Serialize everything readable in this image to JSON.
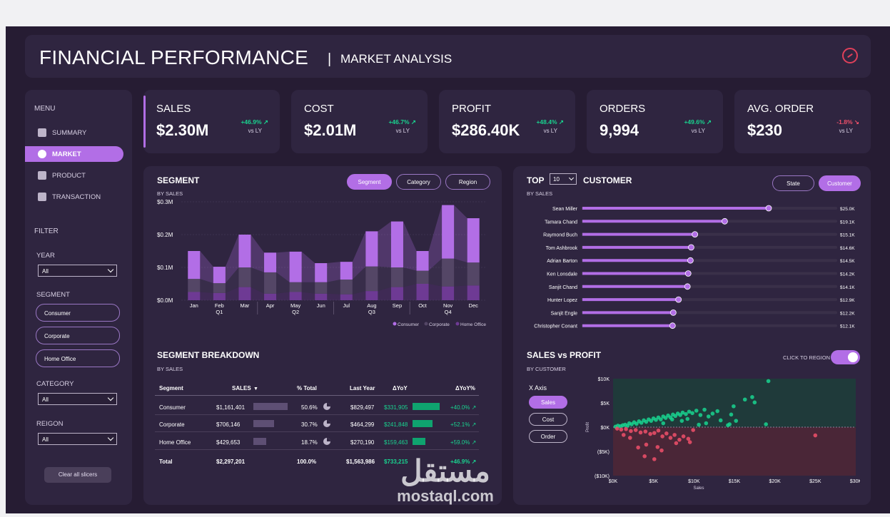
{
  "header": {
    "title": "FINANCIAL PERFORMANCE",
    "separator": "|",
    "subtitle": "MARKET ANALYSIS"
  },
  "sidebar": {
    "menu_heading": "MENU",
    "menu": [
      {
        "label": "SUMMARY",
        "active": false
      },
      {
        "label": "MARKET",
        "active": true
      },
      {
        "label": "PRODUCT",
        "active": false
      },
      {
        "label": "TRANSACTION",
        "active": false
      }
    ],
    "filter_heading": "FILTER",
    "year": {
      "label": "YEAR",
      "value": "All"
    },
    "segment": {
      "label": "SEGMENT",
      "options": [
        "Consumer",
        "Corporate",
        "Home Office"
      ]
    },
    "category": {
      "label": "CATEGORY",
      "value": "All"
    },
    "region": {
      "label": "REIGON",
      "value": "All"
    },
    "clear_label": "Clear all slicers"
  },
  "kpis": [
    {
      "label": "SALES",
      "value": "$2.30M",
      "delta": "+46.9%",
      "dir": "up",
      "vs": "vs LY"
    },
    {
      "label": "COST",
      "value": "$2.01M",
      "delta": "+46.7%",
      "dir": "up",
      "vs": "vs LY"
    },
    {
      "label": "PROFIT",
      "value": "$286.40K",
      "delta": "+48.4%",
      "dir": "up",
      "vs": "vs LY"
    },
    {
      "label": "ORDERS",
      "value": "9,994",
      "delta": "+49.6%",
      "dir": "up",
      "vs": "vs LY"
    },
    {
      "label": "AVG. ORDER",
      "value": "$230",
      "delta": "-1.8%",
      "dir": "down",
      "vs": "vs LY"
    }
  ],
  "segment_panel": {
    "title": "SEGMENT",
    "subtitle": "BY SALES",
    "tabs": [
      {
        "label": "Segment",
        "active": true
      },
      {
        "label": "Category",
        "active": false
      },
      {
        "label": "Region",
        "active": false
      }
    ]
  },
  "breakdown": {
    "title": "SEGMENT BREAKDOWN",
    "subtitle": "BY SALES",
    "headers": [
      "Segment",
      "SALES",
      "% Total",
      "Last Year",
      "ΔYoY",
      "ΔYoY%"
    ],
    "rows": [
      {
        "segment": "Consumer",
        "sales": "$1,161,401",
        "pct": "50.6%",
        "last_year": "$829,497",
        "yoy": "$331,905",
        "yoy_pct": "+40.0%",
        "sales_share": 0.506,
        "yoy_value": 331905
      },
      {
        "segment": "Corporate",
        "sales": "$706,146",
        "pct": "30.7%",
        "last_year": "$464,299",
        "yoy": "$241,848",
        "yoy_pct": "+52.1%",
        "sales_share": 0.307,
        "yoy_value": 241848
      },
      {
        "segment": "Home Office",
        "sales": "$429,653",
        "pct": "18.7%",
        "last_year": "$270,190",
        "yoy": "$159,463",
        "yoy_pct": "+59.0%",
        "sales_share": 0.187,
        "yoy_value": 159463
      }
    ],
    "total": {
      "segment": "Total",
      "sales": "$2,297,201",
      "pct": "100.0%",
      "last_year": "$1,563,986",
      "yoy": "$733,215",
      "yoy_pct": "+46.9%"
    }
  },
  "top_panel": {
    "top_label": "TOP",
    "top_value": "10",
    "customer_label": "CUSTOMER",
    "subtitle": "BY SALES",
    "tabs": [
      {
        "label": "State",
        "active": false
      },
      {
        "label": "Customer",
        "active": true
      }
    ]
  },
  "scatter_panel": {
    "title": "SALES vs PROFIT",
    "subtitle": "BY CUSTOMER",
    "toggle_label": "CLICK TO REGION",
    "xaxis_label": "X Axis",
    "xaxis_options": [
      {
        "label": "Sales",
        "active": true
      },
      {
        "label": "Cost",
        "active": false
      },
      {
        "label": "Order",
        "active": false
      }
    ]
  },
  "colors": {
    "consumer": "#b26ee6",
    "corporate": "#544666",
    "home_office": "#6e3a94",
    "positive": "#19d38f",
    "negative": "#f0506a",
    "accent": "#b26ee6"
  },
  "watermark": {
    "brand_arabic": "مستقل",
    "brand_latin": "mostaql.com"
  },
  "chart_data": [
    {
      "type": "bar",
      "title": "SEGMENT",
      "subtitle": "BY SALES",
      "categories": [
        "Jan",
        "Feb",
        "Mar",
        "Apr",
        "May",
        "Jun",
        "Jul",
        "Aug",
        "Sep",
        "Oct",
        "Nov",
        "Dec"
      ],
      "quarter_labels": {
        "Feb": "Q1",
        "May": "Q2",
        "Aug": "Q3",
        "Nov": "Q4"
      },
      "y_ticks": [
        "$0.0M",
        "$0.1M",
        "$0.2M",
        "$0.3M"
      ],
      "ylim": [
        0,
        0.3
      ],
      "stacked": true,
      "series": [
        {
          "name": "Home Office",
          "values": [
            0.025,
            0.022,
            0.04,
            0.02,
            0.025,
            0.02,
            0.018,
            0.028,
            0.04,
            0.05,
            0.042,
            0.045
          ]
        },
        {
          "name": "Corporate",
          "values": [
            0.04,
            0.03,
            0.06,
            0.065,
            0.03,
            0.035,
            0.045,
            0.075,
            0.06,
            0.04,
            0.085,
            0.07
          ]
        },
        {
          "name": "Consumer",
          "values": [
            0.085,
            0.05,
            0.1,
            0.06,
            0.093,
            0.058,
            0.054,
            0.107,
            0.14,
            0.06,
            0.163,
            0.135
          ]
        }
      ],
      "legend": [
        "Consumer",
        "Corporate",
        "Home Office"
      ],
      "legend_position": "bottom-right"
    },
    {
      "type": "bar",
      "orientation": "horizontal",
      "title": "TOP CUSTOMER",
      "categories": [
        "Sean Miller",
        "Tamara Chand",
        "Raymond Buch",
        "Tom Ashbrook",
        "Adrian Barton",
        "Ken Lonsdale",
        "Sanjit Chand",
        "Hunter Lopez",
        "Sanjit Engle",
        "Christopher Conant"
      ],
      "values": [
        25.0,
        19.1,
        15.1,
        14.6,
        14.5,
        14.2,
        14.1,
        12.9,
        12.2,
        12.1
      ],
      "value_labels": [
        "$25.0K",
        "$19.1K",
        "$15.1K",
        "$14.6K",
        "$14.5K",
        "$14.2K",
        "$14.1K",
        "$12.9K",
        "$12.2K",
        "$12.1K"
      ],
      "xlim": [
        0,
        34
      ]
    },
    {
      "type": "scatter",
      "title": "SALES vs PROFIT",
      "xlabel": "Sales",
      "ylabel": "Profit",
      "x_ticks": [
        "$0K",
        "$5K",
        "$10K",
        "$15K",
        "$20K",
        "$25K",
        "$30K"
      ],
      "y_ticks": [
        "$10K",
        "$5K",
        "$0K",
        "($5K)",
        "($10K)"
      ],
      "xlim": [
        0,
        30
      ],
      "ylim": [
        -10,
        10
      ],
      "positive": [
        [
          0.3,
          0.1
        ],
        [
          0.6,
          0.3
        ],
        [
          0.9,
          0.2
        ],
        [
          1.2,
          0.4
        ],
        [
          1.5,
          0.5
        ],
        [
          1.8,
          0.3
        ],
        [
          2.0,
          0.8
        ],
        [
          2.3,
          0.6
        ],
        [
          2.6,
          1.0
        ],
        [
          2.9,
          0.7
        ],
        [
          3.2,
          1.2
        ],
        [
          3.5,
          0.9
        ],
        [
          3.8,
          1.4
        ],
        [
          4.1,
          1.1
        ],
        [
          4.4,
          1.6
        ],
        [
          4.7,
          1.3
        ],
        [
          5.0,
          1.8
        ],
        [
          5.3,
          1.5
        ],
        [
          5.6,
          2.0
        ],
        [
          5.9,
          1.6
        ],
        [
          6.2,
          2.2
        ],
        [
          6.5,
          1.9
        ],
        [
          6.8,
          2.4
        ],
        [
          7.1,
          2.0
        ],
        [
          7.4,
          2.6
        ],
        [
          7.7,
          2.3
        ],
        [
          8.0,
          2.8
        ],
        [
          8.3,
          2.5
        ],
        [
          8.6,
          3.0
        ],
        [
          9.0,
          2.7
        ],
        [
          9.4,
          3.2
        ],
        [
          9.8,
          2.9
        ],
        [
          10.3,
          3.4
        ],
        [
          10.8,
          2.5
        ],
        [
          11.3,
          3.6
        ],
        [
          11.8,
          2.2
        ],
        [
          12.3,
          2.8
        ],
        [
          12.9,
          3.3
        ],
        [
          13.3,
          1.4
        ],
        [
          11.5,
          0.8
        ],
        [
          14.6,
          2.6
        ],
        [
          16.3,
          5.7
        ],
        [
          15.2,
          1.3
        ],
        [
          14.2,
          0.4
        ],
        [
          14.9,
          4.3
        ],
        [
          17.2,
          6.2
        ],
        [
          17.5,
          5.1
        ],
        [
          14.4,
          0.6
        ],
        [
          18.9,
          0.6
        ],
        [
          19.2,
          9.5
        ],
        [
          10.6,
          0.5
        ],
        [
          9.2,
          1.7
        ],
        [
          8.5,
          1.3
        ],
        [
          7.3,
          1.6
        ],
        [
          6.2,
          0.8
        ]
      ],
      "negative": [
        [
          0.5,
          -0.3
        ],
        [
          1.0,
          -0.5
        ],
        [
          1.6,
          -0.4
        ],
        [
          2.2,
          -0.8
        ],
        [
          2.8,
          -0.6
        ],
        [
          3.4,
          -1.1
        ],
        [
          4.0,
          -0.9
        ],
        [
          4.6,
          -1.4
        ],
        [
          5.1,
          -1.2
        ],
        [
          5.6,
          -0.7
        ],
        [
          6.1,
          -1.9
        ],
        [
          6.6,
          -1.3
        ],
        [
          7.1,
          -2.2
        ],
        [
          7.6,
          -1.6
        ],
        [
          8.2,
          -2.6
        ],
        [
          8.7,
          -1.9
        ],
        [
          9.3,
          -2.4
        ],
        [
          3.1,
          -4.2
        ],
        [
          4.1,
          -3.6
        ],
        [
          5.5,
          -4.1
        ],
        [
          6.0,
          -4.8
        ],
        [
          5.1,
          -6.6
        ],
        [
          3.9,
          -6.0
        ],
        [
          2.1,
          -2.2
        ],
        [
          1.3,
          -1.6
        ],
        [
          9.5,
          -3.1
        ],
        [
          7.8,
          -3.3
        ],
        [
          9.9,
          -0.6
        ],
        [
          25.0,
          -1.7
        ]
      ]
    }
  ]
}
